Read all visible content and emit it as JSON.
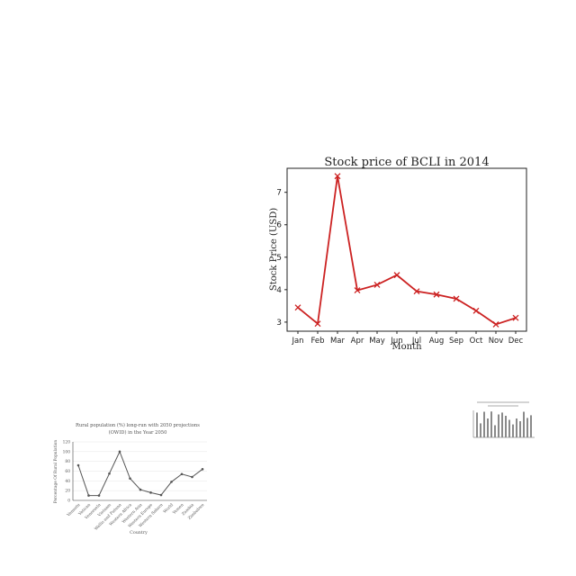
{
  "chart_data": [
    {
      "type": "line",
      "title": "Stock price of BCLI in 2014",
      "xlabel": "Month",
      "ylabel": "Stock Price (USD)",
      "categories": [
        "Jan",
        "Feb",
        "Mar",
        "Apr",
        "May",
        "Jun",
        "Jul",
        "Aug",
        "Sep",
        "Oct",
        "Nov",
        "Dec"
      ],
      "values": [
        3.45,
        2.95,
        7.5,
        3.98,
        4.15,
        4.45,
        3.95,
        3.85,
        3.72,
        3.35,
        2.93,
        3.13
      ],
      "yticks": [
        "3",
        "4",
        "5",
        "6",
        "7"
      ],
      "ylim": [
        2.72,
        7.74
      ],
      "marker": "x",
      "color": "#cc2222",
      "grid": false
    },
    {
      "type": "line",
      "title": "Rural population (%) long-run with 2050 projections (OWID) in the Year 2050",
      "xlabel": "Country",
      "ylabel": "Percentage Of Rural Population",
      "categories": [
        "Vanuatu",
        "Vatican",
        "Venezuela",
        "Vietnam",
        "Wallis and Futuna",
        "Western Africa",
        "Western Asia",
        "Western Europe",
        "Western Sahara",
        "World",
        "Yemen",
        "Zambia",
        "Zimbabwe"
      ],
      "values": [
        72,
        10,
        10,
        55,
        100,
        45,
        22,
        16,
        11,
        38,
        54,
        48,
        64
      ],
      "yticks": [
        "0",
        "20",
        "40",
        "60",
        "80",
        "100",
        "120"
      ],
      "ylim": [
        0,
        120
      ],
      "color": "#555555",
      "grid": true
    },
    {
      "type": "bar",
      "values": [
        0.92,
        0.52,
        0.95,
        0.7,
        0.96,
        0.45,
        0.85,
        0.92,
        0.8,
        0.65,
        0.48,
        0.7,
        0.6,
        0.95,
        0.72,
        0.82
      ],
      "color": "#8a8a8a"
    }
  ]
}
